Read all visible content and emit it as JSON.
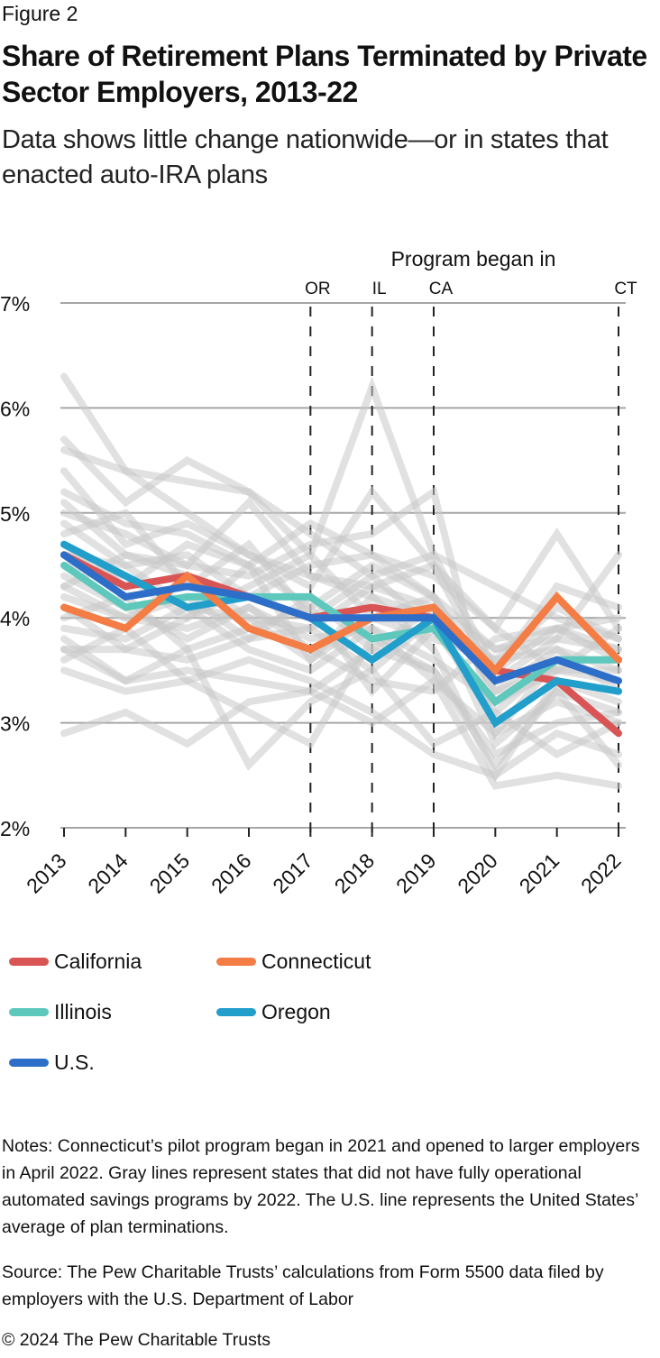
{
  "figure_label": "Figure 2",
  "title": "Share of Retirement Plans Terminated by Private Sector Employers, 2013-22",
  "subtitle": "Data shows little change nationwide—or in states that enacted auto-IRA plans",
  "chart_data": {
    "type": "line",
    "title": "Share of Retirement Plans Terminated by Private Sector Employers, 2013-22",
    "xlabel": "",
    "ylabel": "",
    "x": [
      2013,
      2014,
      2015,
      2016,
      2017,
      2018,
      2019,
      2020,
      2021,
      2022
    ],
    "x_tick_labels": [
      "2013",
      "2014",
      "2015",
      "2016",
      "2017",
      "2018",
      "2019",
      "2020",
      "2021",
      "2022"
    ],
    "ylim": [
      2,
      7
    ],
    "y_ticks": [
      2,
      3,
      4,
      5,
      6,
      7
    ],
    "y_tick_labels": [
      "2%",
      "3%",
      "4%",
      "5%",
      "6%",
      "7%"
    ],
    "grid": "horizontal",
    "annotation_header": "Program began in",
    "program_start_markers": [
      {
        "label": "OR",
        "year": 2017
      },
      {
        "label": "IL",
        "year": 2018
      },
      {
        "label": "CA",
        "year": 2019
      },
      {
        "label": "CT",
        "year": 2022
      }
    ],
    "series": [
      {
        "name": "California",
        "color": "#d95555",
        "values": [
          4.6,
          4.3,
          4.4,
          4.2,
          4.0,
          4.1,
          4.0,
          3.5,
          3.4,
          2.9
        ]
      },
      {
        "name": "Connecticut",
        "color": "#f47c45",
        "values": [
          4.1,
          3.9,
          4.4,
          3.9,
          3.7,
          4.0,
          4.1,
          3.5,
          4.2,
          3.6
        ]
      },
      {
        "name": "Illinois",
        "color": "#5ec8bd",
        "values": [
          4.5,
          4.1,
          4.2,
          4.2,
          4.2,
          3.8,
          3.9,
          3.2,
          3.6,
          3.6
        ]
      },
      {
        "name": "Oregon",
        "color": "#229ecb",
        "values": [
          4.7,
          4.4,
          4.1,
          4.2,
          4.0,
          3.6,
          4.0,
          3.0,
          3.4,
          3.3
        ]
      },
      {
        "name": "U.S.",
        "color": "#2c6ec8",
        "values": [
          4.6,
          4.2,
          4.3,
          4.2,
          4.0,
          4.0,
          4.0,
          3.4,
          3.6,
          3.4
        ]
      }
    ],
    "other_states": {
      "description": "Gray lines represent states that did not have fully operational automated savings programs by 2022",
      "color": "#c8c8c8",
      "series": [
        [
          6.3,
          5.4,
          5.0,
          4.6,
          4.4,
          4.2,
          4.0,
          3.6,
          3.7,
          3.5
        ],
        [
          5.7,
          5.1,
          5.5,
          5.2,
          4.8,
          4.4,
          4.6,
          4.3,
          4.0,
          3.8
        ],
        [
          5.6,
          5.4,
          5.3,
          5.2,
          4.6,
          6.2,
          4.6,
          3.5,
          3.9,
          3.7
        ],
        [
          5.4,
          4.7,
          4.9,
          4.6,
          4.3,
          5.2,
          4.5,
          3.9,
          4.8,
          3.9
        ],
        [
          5.2,
          4.9,
          4.8,
          4.5,
          4.9,
          4.6,
          4.2,
          3.7,
          3.8,
          4.6
        ],
        [
          5.1,
          4.6,
          4.5,
          4.4,
          4.7,
          4.8,
          5.2,
          2.9,
          3.6,
          3.4
        ],
        [
          5.0,
          4.8,
          4.5,
          5.1,
          4.4,
          4.3,
          4.1,
          3.7,
          3.9,
          3.6
        ],
        [
          4.9,
          4.5,
          4.6,
          4.2,
          4.5,
          4.6,
          4.4,
          3.9,
          3.5,
          3.9
        ],
        [
          4.8,
          5.0,
          4.3,
          4.7,
          4.0,
          4.4,
          3.9,
          3.5,
          4.3,
          4.1
        ],
        [
          4.7,
          4.3,
          4.7,
          4.5,
          4.1,
          4.5,
          4.2,
          3.3,
          3.7,
          3.3
        ],
        [
          4.5,
          4.4,
          4.0,
          4.3,
          4.6,
          4.0,
          3.8,
          3.6,
          4.1,
          3.8
        ],
        [
          4.3,
          4.6,
          4.4,
          4.0,
          3.9,
          4.3,
          4.5,
          3.4,
          3.8,
          3.7
        ],
        [
          4.3,
          4.0,
          4.2,
          3.8,
          4.2,
          3.7,
          4.1,
          2.8,
          3.3,
          3.1
        ],
        [
          4.2,
          4.0,
          3.9,
          4.1,
          3.8,
          3.9,
          3.6,
          3.2,
          3.5,
          3.5
        ],
        [
          4.1,
          3.7,
          4.0,
          4.5,
          3.6,
          4.2,
          3.7,
          2.5,
          3.4,
          3.2
        ],
        [
          4.0,
          4.2,
          3.7,
          3.9,
          4.1,
          3.3,
          3.9,
          3.1,
          3.6,
          3.6
        ],
        [
          3.9,
          3.8,
          4.1,
          3.7,
          3.5,
          3.9,
          3.4,
          2.9,
          3.2,
          3.0
        ],
        [
          3.7,
          3.7,
          3.6,
          3.8,
          3.9,
          3.5,
          4.0,
          3.0,
          3.4,
          2.9
        ],
        [
          3.7,
          3.4,
          3.5,
          3.4,
          3.3,
          3.7,
          3.5,
          2.7,
          3.0,
          3.1
        ],
        [
          3.6,
          3.9,
          3.4,
          3.6,
          3.4,
          3.1,
          2.7,
          2.5,
          2.9,
          2.7
        ],
        [
          3.5,
          3.3,
          3.4,
          3.1,
          2.8,
          3.8,
          3.5,
          2.6,
          3.3,
          2.6
        ],
        [
          2.9,
          3.1,
          2.8,
          3.2,
          3.3,
          3.0,
          3.4,
          2.4,
          2.5,
          2.4
        ],
        [
          3.8,
          3.4,
          3.7,
          2.6,
          3.2,
          3.5,
          2.8,
          3.1,
          2.7,
          3.0
        ],
        [
          4.4,
          4.1,
          3.8,
          4.1,
          3.7,
          3.4,
          3.3,
          3.8,
          3.9,
          4.0
        ],
        [
          4.6,
          4.5,
          4.1,
          4.0,
          3.6,
          4.0,
          4.2,
          3.3,
          3.5,
          3.4
        ]
      ]
    }
  },
  "legend": [
    {
      "label": "California",
      "color": "#d95555"
    },
    {
      "label": "Connecticut",
      "color": "#f47c45"
    },
    {
      "label": "Illinois",
      "color": "#5ec8bd"
    },
    {
      "label": "Oregon",
      "color": "#229ecb"
    },
    {
      "label": "U.S.",
      "color": "#2c6ec8"
    }
  ],
  "notes": "Notes: Connecticut’s pilot program began in 2021 and opened to larger employers in April 2022. Gray lines represent states that did not have fully operational automated savings programs by 2022. The U.S. line represents the United States’ average of plan terminations.",
  "source": "Source: The Pew Charitable Trusts’ calculations from Form 5500 data filed by employers with the U.S. Department of Labor",
  "copyright": "© 2024 The Pew Charitable Trusts"
}
